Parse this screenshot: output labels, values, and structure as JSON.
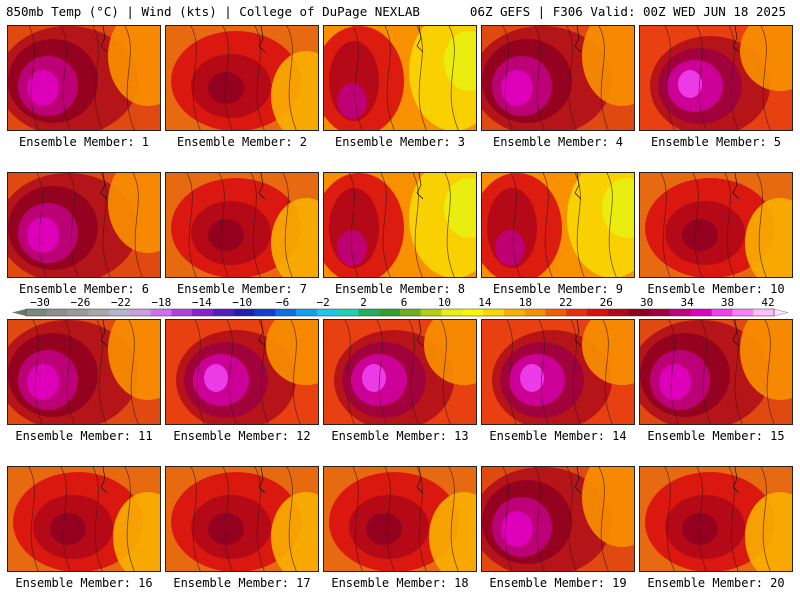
{
  "header": {
    "left_title": "850mb Temp (°C) | Wind (kts) | College of DuPage NEXLAB",
    "right_title": "06Z GEFS | F306 Valid: 00Z WED JUN 18 2025"
  },
  "panels": [
    {
      "label": "Ensemble Member: 1",
      "theme": "hot-west"
    },
    {
      "label": "Ensemble Member: 2",
      "theme": "red"
    },
    {
      "label": "Ensemble Member: 3",
      "theme": "cool-east"
    },
    {
      "label": "Ensemble Member: 4",
      "theme": "hot-west"
    },
    {
      "label": "Ensemble Member: 5",
      "theme": "hot-center"
    },
    {
      "label": "Ensemble Member: 6",
      "theme": "hot-west"
    },
    {
      "label": "Ensemble Member: 7",
      "theme": "red"
    },
    {
      "label": "Ensemble Member: 8",
      "theme": "cool-east"
    },
    {
      "label": "Ensemble Member: 9",
      "theme": "cool-east"
    },
    {
      "label": "Ensemble Member: 10",
      "theme": "red"
    },
    {
      "label": "Ensemble Member: 11",
      "theme": "hot-west"
    },
    {
      "label": "Ensemble Member: 12",
      "theme": "hot-center"
    },
    {
      "label": "Ensemble Member: 13",
      "theme": "hot-center"
    },
    {
      "label": "Ensemble Member: 14",
      "theme": "hot-center"
    },
    {
      "label": "Ensemble Member: 15",
      "theme": "hot-west"
    },
    {
      "label": "Ensemble Member: 16",
      "theme": "red"
    },
    {
      "label": "Ensemble Member: 17",
      "theme": "red"
    },
    {
      "label": "Ensemble Member: 18",
      "theme": "red"
    },
    {
      "label": "Ensemble Member: 19",
      "theme": "hot-west"
    },
    {
      "label": "Ensemble Member: 20",
      "theme": "red"
    }
  ],
  "colorbar": {
    "tick_labels": [
      "−30",
      "−26",
      "−22",
      "−18",
      "−14",
      "−10",
      "−6",
      "−2",
      "2",
      "6",
      "10",
      "14",
      "18",
      "22",
      "26",
      "30",
      "34",
      "38",
      "42"
    ],
    "colors": [
      "#7a8a7a",
      "#8e8e8e",
      "#9a9a9a",
      "#a8a8a8",
      "#b4b4cc",
      "#c8a0e0",
      "#d070f0",
      "#b040e0",
      "#8a20d0",
      "#5020c0",
      "#2020b0",
      "#1040d0",
      "#1070e0",
      "#10a0f0",
      "#20c8e8",
      "#20d0b0",
      "#20b060",
      "#30a030",
      "#70b020",
      "#b0d010",
      "#e8f010",
      "#f8f800",
      "#f8d800",
      "#f8b000",
      "#f89000",
      "#f06000",
      "#e83010",
      "#d81010",
      "#b00818",
      "#900020",
      "#a00040",
      "#c00080",
      "#e000c0",
      "#f040f0",
      "#f880f8",
      "#fcc0fc"
    ],
    "unit_note": ""
  }
}
